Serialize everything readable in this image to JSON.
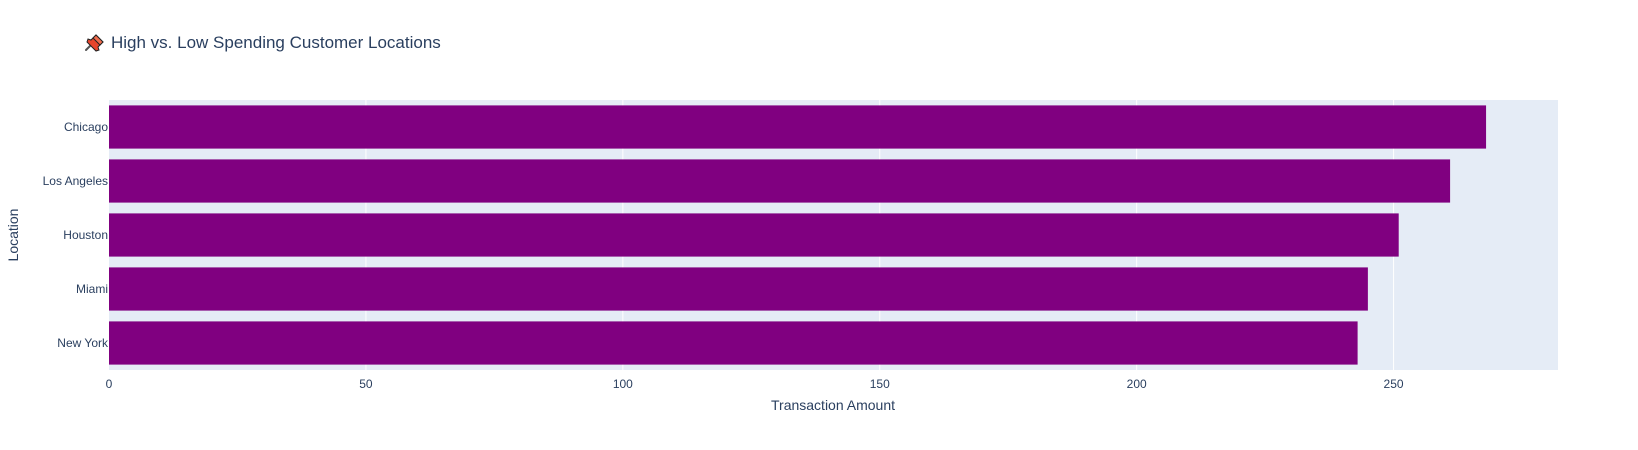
{
  "chart_data": {
    "type": "bar",
    "orientation": "horizontal",
    "title": "High vs. Low Spending Customer Locations",
    "title_icon": "pushpin-icon",
    "xlabel": "Transaction Amount",
    "ylabel": "Location",
    "categories": [
      "Chicago",
      "Los Angeles",
      "Houston",
      "Miami",
      "New York"
    ],
    "values": [
      268,
      261,
      251,
      245,
      243
    ],
    "xlim": [
      0,
      282
    ],
    "xticks": [
      0,
      50,
      100,
      150,
      200,
      250
    ],
    "grid": true,
    "legend": "none",
    "colors": {
      "bar": "#800080",
      "plot_bg": "#e5ecf6",
      "grid": "#ffffff",
      "text": "#2a3f5f"
    }
  }
}
